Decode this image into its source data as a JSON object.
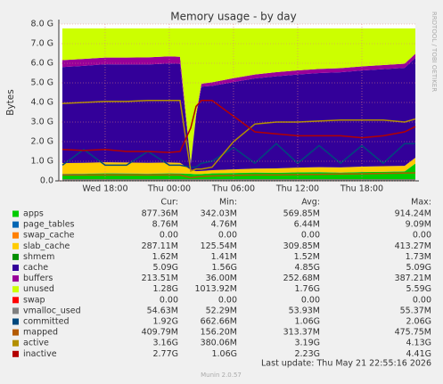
{
  "chart_data": {
    "type": "stacked-area",
    "title": "Memory usage - by day",
    "y_label": "Bytes",
    "side_text": "RRDTOOL / TOBI OETIKER",
    "footer": "Last update: Thu May 21 22:55:16 2026",
    "version": "Munin 2.0.57",
    "stat_headers": [
      "Cur:",
      "Min:",
      "Avg:",
      "Max:"
    ],
    "x": [
      14,
      16,
      18,
      20,
      22,
      24,
      25,
      26,
      26.5,
      27,
      28,
      30,
      32,
      34,
      36,
      38,
      40,
      42,
      44,
      46,
      47
    ],
    "xlim": [
      13.67,
      47
    ],
    "xticks": [
      {
        "value": 18,
        "label": "Wed 18:00"
      },
      {
        "value": 24,
        "label": "Thu 00:00"
      },
      {
        "value": 30,
        "label": "Thu 06:00"
      },
      {
        "value": 36,
        "label": "Thu 12:00"
      },
      {
        "value": 42,
        "label": "Thu 18:00"
      }
    ],
    "ylim": [
      0,
      8
    ],
    "yticks": [
      {
        "value": 0,
        "label": "0.0"
      },
      {
        "value": 1,
        "label": "1.0 G"
      },
      {
        "value": 2,
        "label": "2.0 G"
      },
      {
        "value": 3,
        "label": "3.0 G"
      },
      {
        "value": 4,
        "label": "4.0 G"
      },
      {
        "value": 5,
        "label": "5.0 G"
      },
      {
        "value": 6,
        "label": "6.0 G"
      },
      {
        "value": 7,
        "label": "7.0 G"
      },
      {
        "value": 8,
        "label": "8.0 G"
      }
    ],
    "grid": true,
    "series": [
      {
        "name": "apps",
        "color": "#00cc00",
        "kind": "area",
        "stats": [
          "877.36M",
          "342.03M",
          "569.85M",
          "914.24M"
        ],
        "values": [
          0.35,
          0.36,
          0.38,
          0.37,
          0.36,
          0.38,
          0.37,
          0.36,
          0.34,
          0.35,
          0.38,
          0.4,
          0.42,
          0.41,
          0.43,
          0.44,
          0.42,
          0.45,
          0.46,
          0.48,
          0.88
        ]
      },
      {
        "name": "page_tables",
        "color": "#0066b3",
        "kind": "area",
        "stats": [
          "8.76M",
          "4.76M",
          "6.44M",
          "9.09M"
        ],
        "values": [
          0.008,
          0.008,
          0.008,
          0.008,
          0.008,
          0.008,
          0.008,
          0.005,
          0.005,
          0.005,
          0.006,
          0.006,
          0.006,
          0.006,
          0.006,
          0.007,
          0.007,
          0.007,
          0.008,
          0.008,
          0.009
        ]
      },
      {
        "name": "swap_cache",
        "color": "#ff8000",
        "kind": "area",
        "stats": [
          "0.00",
          "0.00",
          "0.00",
          "0.00"
        ],
        "values": [
          0,
          0,
          0,
          0,
          0,
          0,
          0,
          0,
          0,
          0,
          0,
          0,
          0,
          0,
          0,
          0,
          0,
          0,
          0,
          0,
          0
        ]
      },
      {
        "name": "slab_cache",
        "color": "#ffcc00",
        "kind": "area",
        "stats": [
          "287.11M",
          "125.54M",
          "309.85M",
          "413.27M"
        ],
        "values": [
          0.55,
          0.55,
          0.56,
          0.56,
          0.55,
          0.55,
          0.54,
          0.2,
          0.15,
          0.15,
          0.16,
          0.18,
          0.2,
          0.22,
          0.24,
          0.25,
          0.26,
          0.27,
          0.28,
          0.28,
          0.29
        ]
      },
      {
        "name": "shmem",
        "color": "#008f00",
        "kind": "area",
        "stats": [
          "1.62M",
          "1.41M",
          "1.52M",
          "1.73M"
        ],
        "values": [
          0.0016,
          0.0016,
          0.0016,
          0.0016,
          0.0016,
          0.0016,
          0.0016,
          0.0014,
          0.0014,
          0.0015,
          0.0015,
          0.0015,
          0.0015,
          0.0015,
          0.0015,
          0.0016,
          0.0016,
          0.0016,
          0.0016,
          0.0016,
          0.0016
        ]
      },
      {
        "name": "cache",
        "color": "#330099",
        "kind": "area",
        "stats": [
          "5.09G",
          "1.56G",
          "4.85G",
          "5.09G"
        ],
        "values": [
          4.9,
          4.95,
          5.0,
          5.0,
          5.02,
          5.05,
          5.05,
          0.3,
          2.8,
          4.3,
          4.3,
          4.45,
          4.6,
          4.7,
          4.75,
          4.8,
          4.85,
          4.9,
          4.95,
          5.0,
          5.09
        ]
      },
      {
        "name": "buffers",
        "color": "#990099",
        "kind": "area",
        "stats": [
          "213.51M",
          "36.00M",
          "252.68M",
          "387.21M"
        ],
        "values": [
          0.35,
          0.35,
          0.34,
          0.35,
          0.36,
          0.36,
          0.36,
          0.05,
          0.1,
          0.15,
          0.18,
          0.2,
          0.2,
          0.21,
          0.21,
          0.21,
          0.21,
          0.21,
          0.21,
          0.21,
          0.21
        ]
      },
      {
        "name": "unused",
        "color": "#ccff00",
        "kind": "area",
        "stats": [
          "1.28G",
          "1013.92M",
          "1.76G",
          "5.59G"
        ],
        "values": [
          1.62,
          1.56,
          1.49,
          1.49,
          1.48,
          1.43,
          1.45,
          6.86,
          4.38,
          2.82,
          2.75,
          2.54,
          2.35,
          2.23,
          2.14,
          2.07,
          2.03,
          1.94,
          1.87,
          1.8,
          1.3
        ]
      },
      {
        "name": "swap",
        "color": "#ff0000",
        "kind": "area",
        "stats": [
          "0.00",
          "0.00",
          "0.00",
          "0.00"
        ],
        "values": [
          0,
          0,
          0,
          0,
          0,
          0,
          0,
          0,
          0,
          0,
          0,
          0,
          0,
          0,
          0,
          0,
          0,
          0,
          0,
          0,
          0
        ]
      },
      {
        "name": "vmalloc_used",
        "color": "#808080",
        "kind": "line",
        "stats": [
          "54.63M",
          "52.29M",
          "53.93M",
          "55.37M"
        ],
        "values": [
          0.05,
          0.05,
          0.05,
          0.05,
          0.05,
          0.05,
          0.05,
          0.05,
          0.05,
          0.05,
          0.05,
          0.05,
          0.05,
          0.05,
          0.05,
          0.05,
          0.05,
          0.05,
          0.05,
          0.05,
          0.05
        ]
      },
      {
        "name": "committed",
        "color": "#00487d",
        "kind": "line",
        "stats": [
          "1.92G",
          "662.66M",
          "1.06G",
          "2.06G"
        ],
        "values": [
          0.8,
          1.6,
          0.8,
          0.8,
          1.5,
          0.8,
          0.8,
          0.7,
          0.7,
          0.9,
          1.0,
          1.7,
          0.9,
          1.9,
          0.9,
          1.8,
          0.9,
          1.8,
          0.9,
          1.9,
          1.9
        ]
      },
      {
        "name": "mapped",
        "color": "#b35a00",
        "kind": "line",
        "stats": [
          "409.79M",
          "156.20M",
          "313.37M",
          "475.75M"
        ],
        "values": [
          0.3,
          0.3,
          0.3,
          0.3,
          0.3,
          0.3,
          0.3,
          0.16,
          0.2,
          0.22,
          0.25,
          0.28,
          0.3,
          0.3,
          0.32,
          0.33,
          0.35,
          0.36,
          0.38,
          0.4,
          0.41
        ]
      },
      {
        "name": "active",
        "color": "#b38f00",
        "kind": "line",
        "stats": [
          "3.16G",
          "380.06M",
          "3.19G",
          "4.13G"
        ],
        "values": [
          3.95,
          4.0,
          4.05,
          4.05,
          4.1,
          4.1,
          4.1,
          0.5,
          0.6,
          0.6,
          0.7,
          2.0,
          2.9,
          3.0,
          3.0,
          3.05,
          3.1,
          3.1,
          3.1,
          3.0,
          3.16
        ]
      },
      {
        "name": "inactive",
        "color": "#b30000",
        "kind": "line",
        "stats": [
          "2.77G",
          "1.06G",
          "2.23G",
          "4.41G"
        ],
        "values": [
          1.6,
          1.55,
          1.6,
          1.5,
          1.5,
          1.45,
          1.5,
          2.7,
          3.8,
          4.1,
          4.1,
          3.3,
          2.5,
          2.4,
          2.3,
          2.3,
          2.3,
          2.2,
          2.3,
          2.5,
          2.77
        ]
      }
    ]
  }
}
